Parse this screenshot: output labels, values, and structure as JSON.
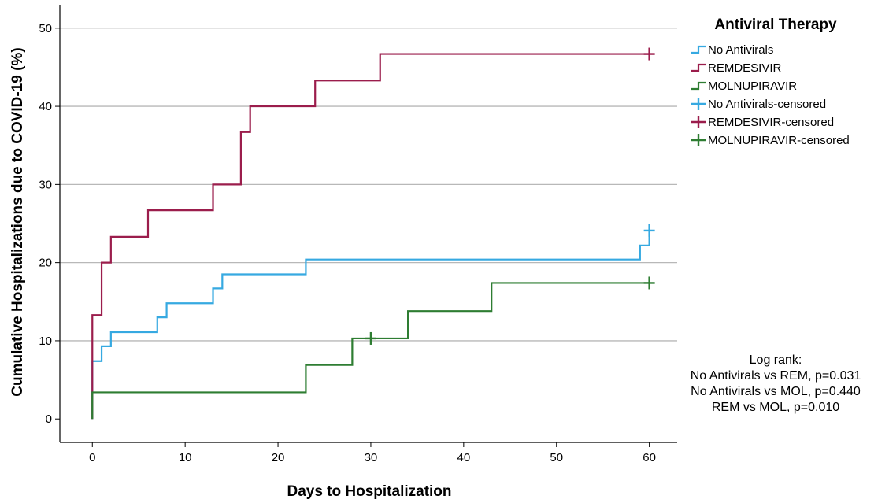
{
  "chart_data": {
    "type": "line",
    "step": true,
    "xlabel": "Days to Hospitalization",
    "ylabel": "Cumulative Hospitalizations due to COVID-19 (%)",
    "xlim": [
      -3.5,
      63
    ],
    "ylim": [
      -3,
      53
    ],
    "xticks": [
      0,
      10,
      20,
      30,
      40,
      50,
      60
    ],
    "yticks": [
      0,
      10,
      20,
      30,
      40,
      50
    ],
    "grid": "horizontal",
    "legend": {
      "title": "Antiviral Therapy",
      "placement": "top-right",
      "entries": [
        {
          "label": "No Antivirals",
          "kind": "step",
          "color": "#36a9e1"
        },
        {
          "label": "REMDESIVIR",
          "kind": "step",
          "color": "#9b1d4c"
        },
        {
          "label": "MOLNUPIRAVIR",
          "kind": "step",
          "color": "#2e7d32"
        },
        {
          "label": "No Antivirals-censored",
          "kind": "censor",
          "color": "#36a9e1"
        },
        {
          "label": "REMDESIVIR-censored",
          "kind": "censor",
          "color": "#9b1d4c"
        },
        {
          "label": "MOLNUPIRAVIR-censored",
          "kind": "censor",
          "color": "#2e7d32"
        }
      ]
    },
    "series": [
      {
        "name": "No Antivirals",
        "color": "#36a9e1",
        "x": [
          0,
          0,
          1,
          2,
          7,
          8,
          13,
          14,
          23,
          59,
          60
        ],
        "y": [
          0,
          7.4,
          9.3,
          11.1,
          13.0,
          14.8,
          16.7,
          18.5,
          20.4,
          22.2,
          24.1
        ],
        "end_x": 60,
        "censored": [
          {
            "x": 60,
            "y": 24.1
          }
        ]
      },
      {
        "name": "REMDESIVIR",
        "color": "#9b1d4c",
        "x": [
          0,
          0,
          1,
          2,
          6,
          13,
          16,
          17,
          24,
          31
        ],
        "y": [
          0,
          13.3,
          20.0,
          23.3,
          26.7,
          30.0,
          36.7,
          40.0,
          43.3,
          46.7
        ],
        "end_x": 60,
        "censored": [
          {
            "x": 60,
            "y": 46.7
          }
        ]
      },
      {
        "name": "MOLNUPIRAVIR",
        "color": "#2e7d32",
        "x": [
          0,
          0,
          23,
          28,
          34,
          43
        ],
        "y": [
          0,
          3.4,
          6.9,
          10.3,
          13.8,
          17.4
        ],
        "end_x": 60,
        "censored": [
          {
            "x": 30,
            "y": 10.3
          },
          {
            "x": 60,
            "y": 17.4
          }
        ]
      }
    ],
    "annotation": [
      "Log rank:",
      "No Antivirals vs REM, p=0.031",
      "No Antivirals vs MOL, p=0.440",
      "REM vs MOL, p=0.010"
    ]
  }
}
